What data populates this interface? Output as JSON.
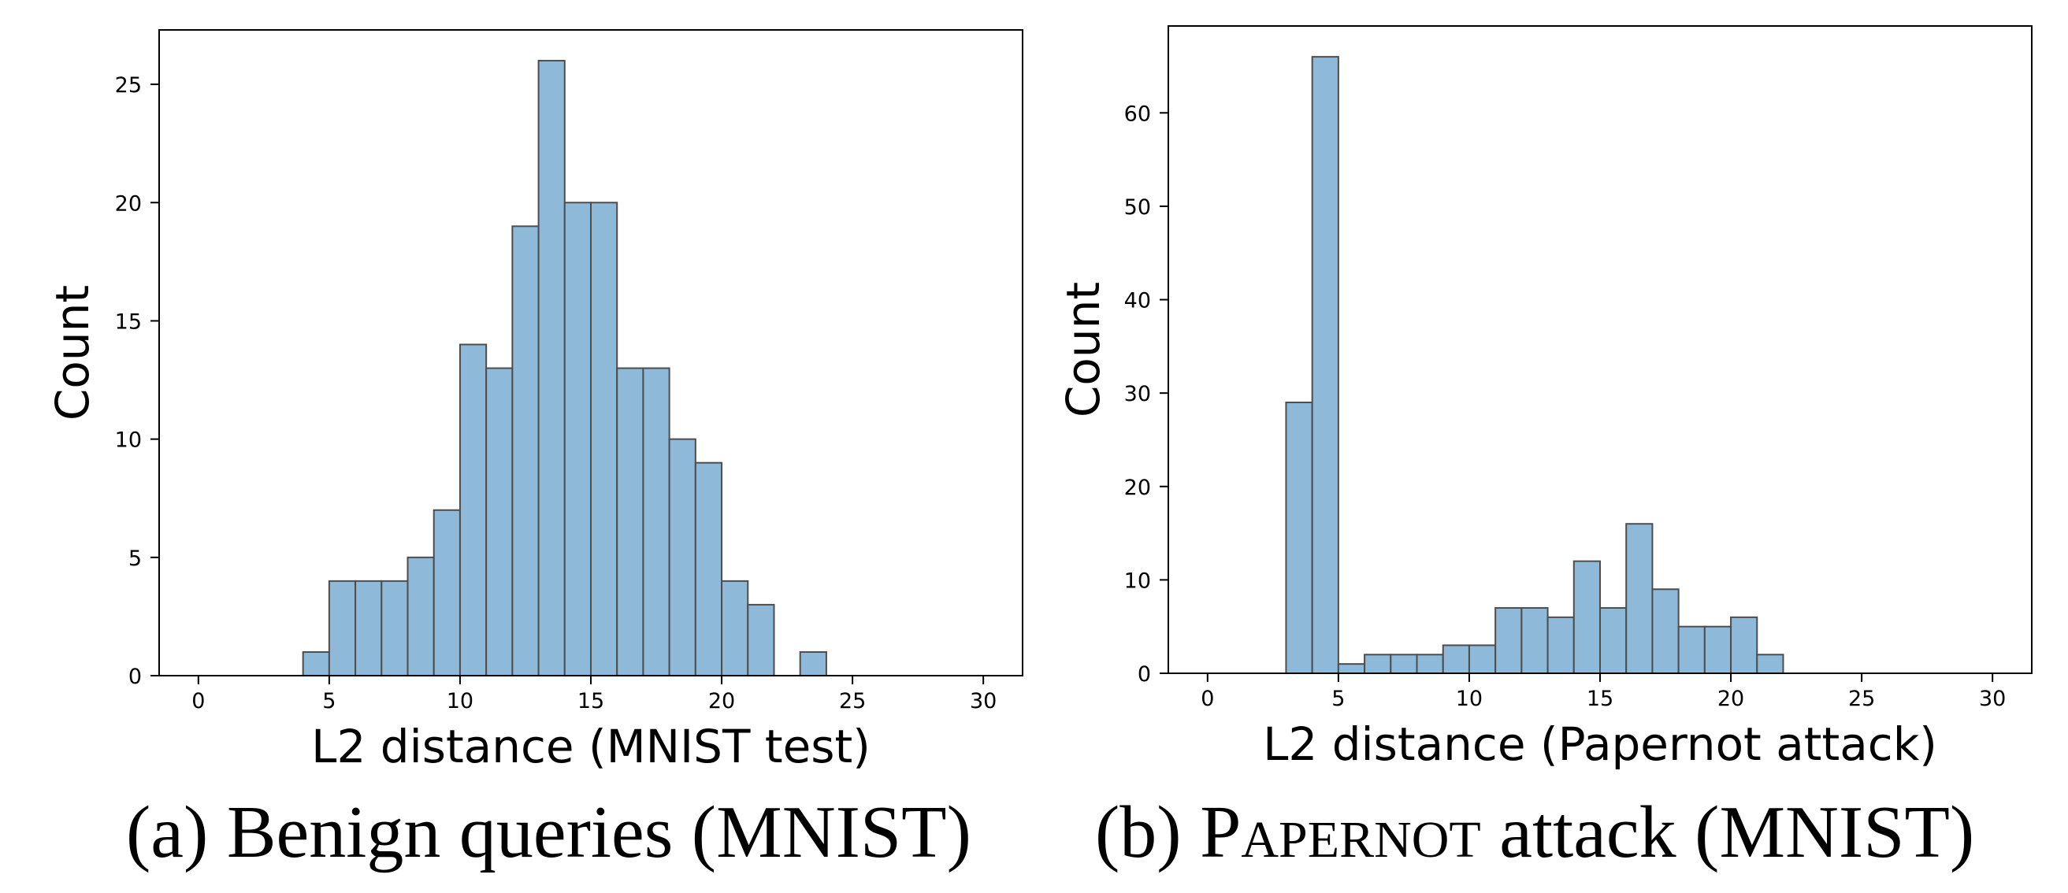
{
  "charts": [
    {
      "caption_pre": "(a) Benign queries (MNIST)",
      "caption_sc": "",
      "caption_post": "",
      "chart_data": {
        "type": "bar",
        "histogram": true,
        "bin_width": 1,
        "bin_starts": [
          4,
          5,
          6,
          7,
          8,
          9,
          10,
          11,
          12,
          13,
          14,
          15,
          16,
          17,
          18,
          19,
          20,
          21,
          23
        ],
        "values": [
          1,
          4,
          4,
          4,
          5,
          7,
          14,
          13,
          19,
          26,
          20,
          20,
          13,
          13,
          10,
          9,
          4,
          3,
          1
        ],
        "xlabel": "L2 distance (MNIST test)",
        "ylabel": "Count",
        "xlim": [
          -1.5,
          31.5
        ],
        "ylim": [
          0,
          27.3
        ],
        "xticks": [
          0,
          5,
          10,
          15,
          20,
          25,
          30
        ],
        "xtick_labels": [
          "0",
          "5",
          "10",
          "15",
          "20",
          "25",
          "30"
        ],
        "yticks": [
          0,
          5,
          10,
          15,
          20,
          25
        ],
        "ytick_labels": [
          "0",
          "5",
          "10",
          "15",
          "20",
          "25"
        ],
        "bar_color": "#8fb9d9",
        "edge_color": "#4d4d4d",
        "grid": false
      }
    },
    {
      "caption_pre": "(b) P",
      "caption_sc": "apernot",
      "caption_post": " attack (MNIST)",
      "chart_data": {
        "type": "bar",
        "histogram": true,
        "bin_width": 1,
        "bin_starts": [
          3,
          4,
          5,
          6,
          7,
          8,
          9,
          10,
          11,
          12,
          13,
          14,
          15,
          16,
          17,
          18,
          19,
          20,
          21
        ],
        "values": [
          29,
          66,
          1,
          2,
          2,
          2,
          3,
          3,
          7,
          7,
          6,
          12,
          7,
          16,
          9,
          5,
          5,
          6,
          2
        ],
        "xlabel": "L2 distance (Papernot attack)",
        "ylabel": "Count",
        "xlim": [
          -1.5,
          31.5
        ],
        "ylim": [
          0,
          69.3
        ],
        "xticks": [
          0,
          5,
          10,
          15,
          20,
          25,
          30
        ],
        "xtick_labels": [
          "0",
          "5",
          "10",
          "15",
          "20",
          "25",
          "30"
        ],
        "yticks": [
          0,
          10,
          20,
          30,
          40,
          50,
          60
        ],
        "ytick_labels": [
          "0",
          "10",
          "20",
          "30",
          "40",
          "50",
          "60"
        ],
        "bar_color": "#8fb9d9",
        "edge_color": "#4d4d4d",
        "grid": false
      }
    }
  ]
}
